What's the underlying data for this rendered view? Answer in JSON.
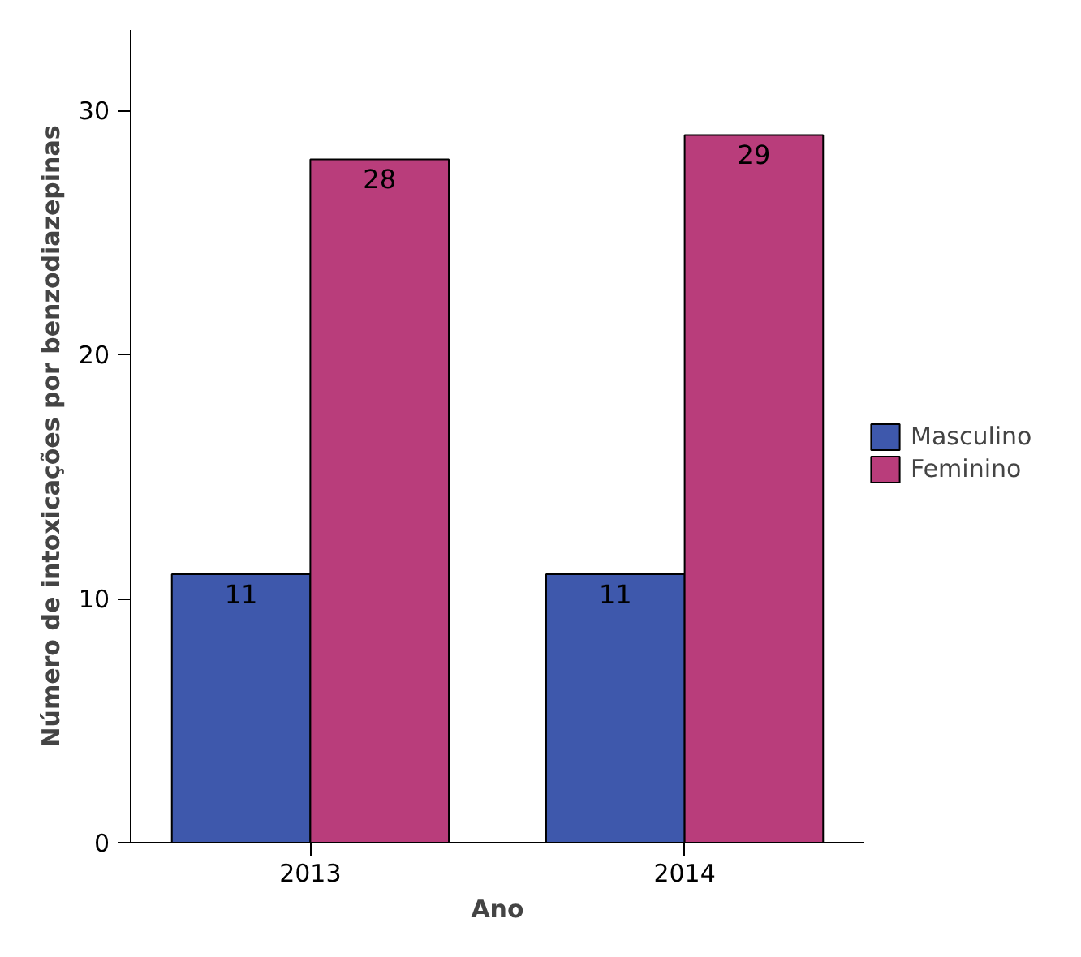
{
  "chart_data": {
    "type": "bar",
    "xlabel": "Ano",
    "ylabel": "Número de intoxicações por benzodiazepinas",
    "categories": [
      "2013",
      "2014"
    ],
    "series": [
      {
        "name": "Masculino",
        "color": "#3e58ac",
        "values": [
          11,
          11
        ]
      },
      {
        "name": "Feminino",
        "color": "#b93d7b",
        "values": [
          28,
          29
        ]
      }
    ],
    "ylim": [
      0,
      33.3
    ],
    "yticks": [
      0,
      10,
      20,
      30
    ],
    "grid": false,
    "legend": "right",
    "data_labels": true
  }
}
